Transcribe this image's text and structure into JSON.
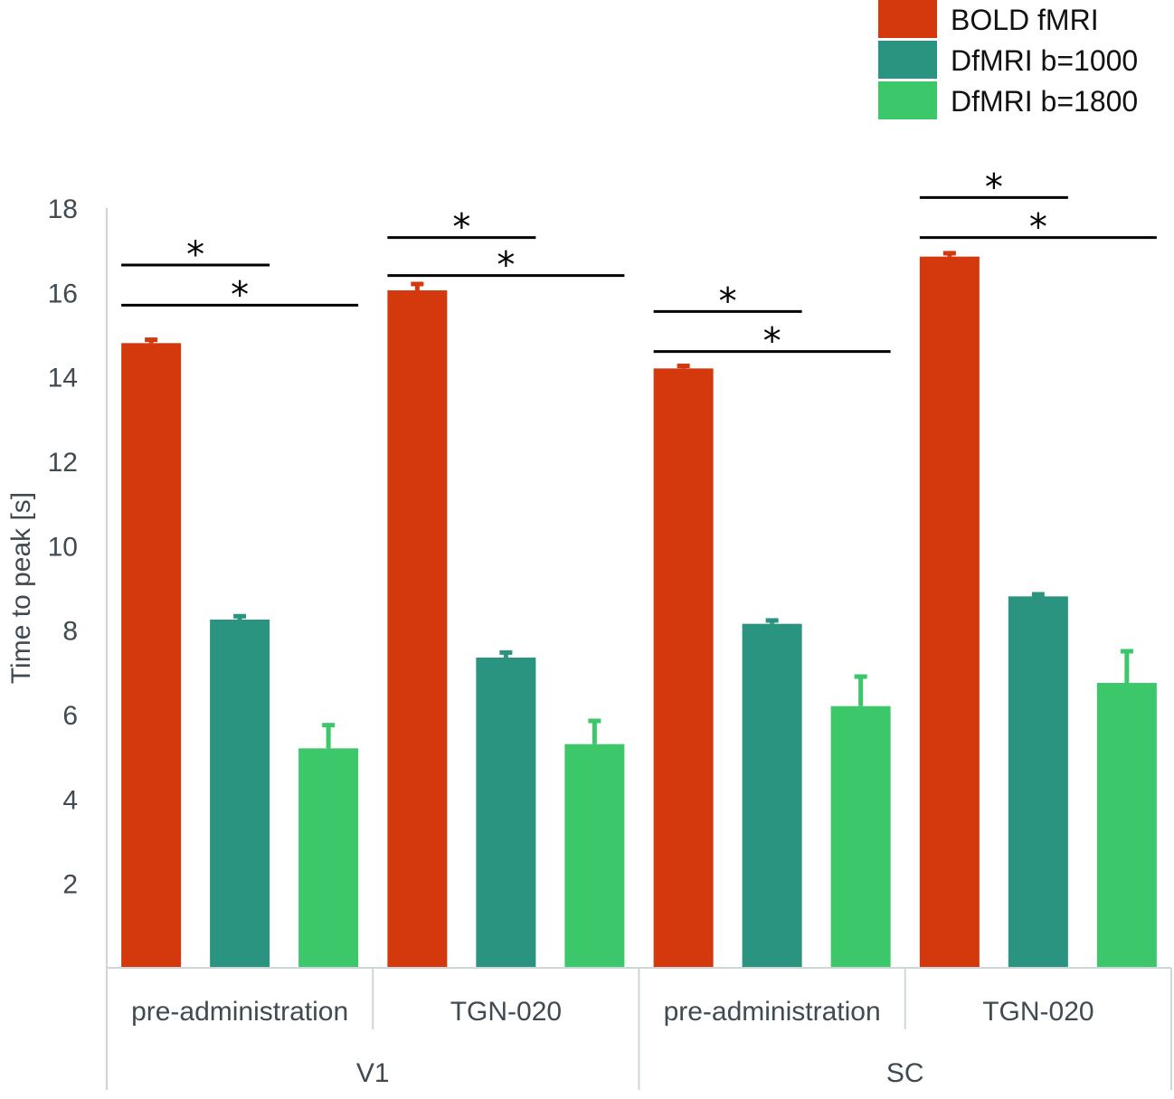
{
  "chart_data": {
    "type": "bar",
    "title": "",
    "xlabel": "",
    "ylabel": "Time to peak [s]",
    "ylim": [
      0,
      18
    ],
    "yticks": [
      2,
      4,
      6,
      8,
      10,
      12,
      14,
      16,
      18
    ],
    "grid": false,
    "legend_position": "top-right",
    "groups": [
      {
        "label": "V1",
        "categories": [
          "pre-administration",
          "TGN-020"
        ]
      },
      {
        "label": "SC",
        "categories": [
          "pre-administration",
          "TGN-020"
        ]
      }
    ],
    "categories": [
      "pre-administration",
      "TGN-020",
      "pre-administration",
      "TGN-020"
    ],
    "series": [
      {
        "name": "BOLD fMRI",
        "color": "#d4380d",
        "values": [
          14.8,
          16.05,
          14.2,
          16.85
        ],
        "errors": [
          0.08,
          0.15,
          0.06,
          0.08
        ]
      },
      {
        "name": "DfMRI b=1000",
        "color": "#2a9480",
        "values": [
          8.25,
          7.35,
          8.15,
          8.8
        ],
        "errors": [
          0.08,
          0.12,
          0.08,
          0.05
        ]
      },
      {
        "name": "DfMRI b=1800",
        "color": "#3cc76b",
        "values": [
          5.2,
          5.3,
          6.2,
          6.75
        ],
        "errors": [
          0.55,
          0.55,
          0.7,
          0.75
        ]
      }
    ],
    "significance": [
      {
        "category_index": 0,
        "pairs": [
          {
            "from": "BOLD fMRI",
            "to": "DfMRI b=1000",
            "level": 16.65,
            "label": "*"
          },
          {
            "from": "BOLD fMRI",
            "to": "DfMRI b=1800",
            "level": 15.7,
            "label": "*"
          }
        ]
      },
      {
        "category_index": 1,
        "pairs": [
          {
            "from": "BOLD fMRI",
            "to": "DfMRI b=1000",
            "level": 17.3,
            "label": "*"
          },
          {
            "from": "BOLD fMRI",
            "to": "DfMRI b=1800",
            "level": 16.4,
            "label": "*"
          }
        ]
      },
      {
        "category_index": 2,
        "pairs": [
          {
            "from": "BOLD fMRI",
            "to": "DfMRI b=1000",
            "level": 15.55,
            "label": "*"
          },
          {
            "from": "BOLD fMRI",
            "to": "DfMRI b=1800",
            "level": 14.6,
            "label": "*"
          }
        ]
      },
      {
        "category_index": 3,
        "pairs": [
          {
            "from": "BOLD fMRI",
            "to": "DfMRI b=1000",
            "level": 18.25,
            "label": "*"
          },
          {
            "from": "BOLD fMRI",
            "to": "DfMRI b=1800",
            "level": 17.3,
            "label": "*"
          }
        ]
      }
    ]
  }
}
